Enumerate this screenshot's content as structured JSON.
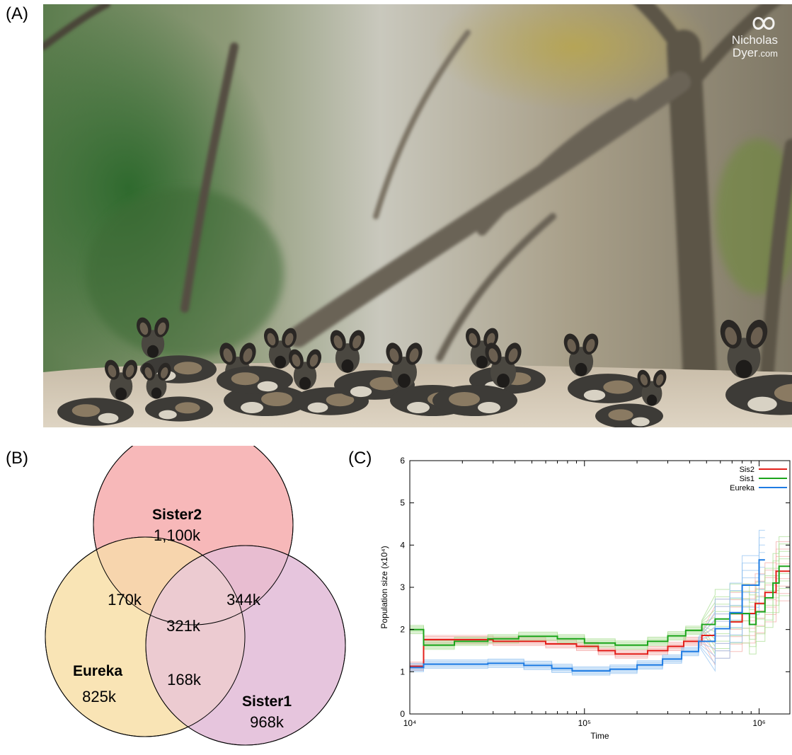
{
  "panels": {
    "a_label": "(A)",
    "b_label": "(B)",
    "c_label": "(C)"
  },
  "photo": {
    "watermark_line1": "Nicholas",
    "watermark_line2": "Dyer",
    "watermark_suffix": ".com"
  },
  "venn": {
    "sets": [
      {
        "name": "Sister2",
        "unique": "1,100k",
        "color": "#f7b8b9"
      },
      {
        "name": "Eureka",
        "unique": "825k",
        "color": "#f9e4b5"
      },
      {
        "name": "Sister1",
        "unique": "968k",
        "color": "#e6c5dd"
      }
    ],
    "overlaps": {
      "sister2_eureka": "170k",
      "sister2_sister1": "344k",
      "eureka_sister1": "168k",
      "all_three": "321k"
    }
  },
  "chart_data": {
    "type": "line",
    "xlabel": "Time",
    "ylabel": "Population size (x10⁴)",
    "x_scale": "log",
    "xlim": [
      10000,
      1500000
    ],
    "ylim": [
      0,
      6
    ],
    "x_ticks": [
      "10⁴",
      "10⁵",
      "10⁶"
    ],
    "y_ticks": [
      "0",
      "1",
      "2",
      "3",
      "4",
      "5",
      "6"
    ],
    "legend_position": "top-right",
    "series": [
      {
        "name": "Sis2",
        "color": "#e3201b",
        "points": [
          [
            10000,
            1.13
          ],
          [
            12000,
            1.13
          ],
          [
            12000,
            1.76
          ],
          [
            30000,
            1.76
          ],
          [
            30000,
            1.72
          ],
          [
            60000,
            1.72
          ],
          [
            60000,
            1.66
          ],
          [
            90000,
            1.66
          ],
          [
            90000,
            1.6
          ],
          [
            120000,
            1.6
          ],
          [
            120000,
            1.5
          ],
          [
            150000,
            1.5
          ],
          [
            150000,
            1.42
          ],
          [
            230000,
            1.42
          ],
          [
            230000,
            1.5
          ],
          [
            300000,
            1.5
          ],
          [
            300000,
            1.6
          ],
          [
            370000,
            1.6
          ],
          [
            370000,
            1.72
          ],
          [
            470000,
            1.72
          ],
          [
            470000,
            1.86
          ],
          [
            560000,
            1.86
          ],
          [
            560000,
            2.02
          ],
          [
            680000,
            2.02
          ],
          [
            680000,
            2.18
          ],
          [
            800000,
            2.18
          ],
          [
            800000,
            2.38
          ],
          [
            950000,
            2.38
          ],
          [
            950000,
            2.62
          ],
          [
            1080000,
            2.62
          ],
          [
            1080000,
            2.88
          ],
          [
            1250000,
            2.88
          ],
          [
            1250000,
            3.38
          ],
          [
            1500000,
            3.38
          ]
        ]
      },
      {
        "name": "Sis1",
        "color": "#1ca51c",
        "points": [
          [
            10000,
            2.0
          ],
          [
            12000,
            2.0
          ],
          [
            12000,
            1.63
          ],
          [
            18000,
            1.63
          ],
          [
            18000,
            1.72
          ],
          [
            28000,
            1.72
          ],
          [
            28000,
            1.78
          ],
          [
            42000,
            1.78
          ],
          [
            42000,
            1.84
          ],
          [
            70000,
            1.84
          ],
          [
            70000,
            1.78
          ],
          [
            100000,
            1.78
          ],
          [
            100000,
            1.68
          ],
          [
            150000,
            1.68
          ],
          [
            150000,
            1.63
          ],
          [
            230000,
            1.63
          ],
          [
            230000,
            1.72
          ],
          [
            300000,
            1.72
          ],
          [
            300000,
            1.85
          ],
          [
            380000,
            1.85
          ],
          [
            380000,
            1.98
          ],
          [
            470000,
            1.98
          ],
          [
            470000,
            2.12
          ],
          [
            560000,
            2.12
          ],
          [
            560000,
            2.25
          ],
          [
            680000,
            2.25
          ],
          [
            680000,
            2.38
          ],
          [
            880000,
            2.38
          ],
          [
            880000,
            2.12
          ],
          [
            960000,
            2.12
          ],
          [
            960000,
            2.42
          ],
          [
            1080000,
            2.42
          ],
          [
            1080000,
            2.75
          ],
          [
            1200000,
            2.75
          ],
          [
            1200000,
            3.1
          ],
          [
            1300000,
            3.1
          ],
          [
            1300000,
            3.5
          ],
          [
            1500000,
            3.5
          ]
        ]
      },
      {
        "name": "Eureka",
        "color": "#1f7ce3",
        "points": [
          [
            10000,
            1.1
          ],
          [
            12000,
            1.1
          ],
          [
            12000,
            1.18
          ],
          [
            28000,
            1.18
          ],
          [
            28000,
            1.2
          ],
          [
            45000,
            1.2
          ],
          [
            45000,
            1.15
          ],
          [
            65000,
            1.15
          ],
          [
            65000,
            1.08
          ],
          [
            85000,
            1.08
          ],
          [
            85000,
            1.02
          ],
          [
            140000,
            1.02
          ],
          [
            140000,
            1.06
          ],
          [
            200000,
            1.06
          ],
          [
            200000,
            1.16
          ],
          [
            280000,
            1.16
          ],
          [
            280000,
            1.3
          ],
          [
            360000,
            1.3
          ],
          [
            360000,
            1.48
          ],
          [
            450000,
            1.48
          ],
          [
            450000,
            1.72
          ],
          [
            560000,
            1.72
          ],
          [
            560000,
            2.02
          ],
          [
            680000,
            2.02
          ],
          [
            680000,
            2.4
          ],
          [
            800000,
            2.4
          ],
          [
            800000,
            3.05
          ],
          [
            1000000,
            3.05
          ],
          [
            1000000,
            3.65
          ],
          [
            1080000,
            3.65
          ]
        ]
      }
    ]
  }
}
